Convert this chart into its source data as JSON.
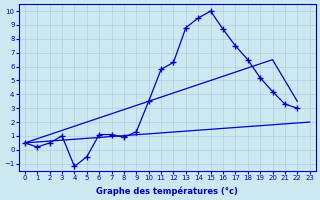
{
  "xlabel": "Graphe des températures (°c)",
  "background_color": "#cce8f0",
  "grid_color": "#aaccdd",
  "line_color": "#0000cc",
  "ylim": [
    -1.5,
    10.5
  ],
  "xlim": [
    -0.5,
    23.5
  ],
  "yticks": [
    -1,
    0,
    1,
    2,
    3,
    4,
    5,
    6,
    7,
    8,
    9,
    10
  ],
  "xticks": [
    0,
    1,
    2,
    3,
    4,
    5,
    6,
    7,
    8,
    9,
    10,
    11,
    12,
    13,
    14,
    15,
    16,
    17,
    18,
    19,
    20,
    21,
    22,
    23
  ],
  "temp_x": [
    0,
    1,
    2,
    3,
    4,
    5,
    6,
    7,
    8,
    9,
    10,
    11,
    12,
    13,
    14,
    15,
    16,
    17,
    18,
    19,
    20,
    21,
    22
  ],
  "temp_y": [
    0.5,
    0.2,
    0.5,
    1.0,
    -1.2,
    -0.5,
    1.1,
    1.1,
    0.9,
    1.3,
    3.5,
    5.8,
    6.3,
    8.8,
    9.5,
    10.0,
    8.7,
    7.5,
    6.5,
    5.2,
    4.2,
    3.3,
    3.0
  ],
  "line2_x": [
    0,
    20,
    22
  ],
  "line2_y": [
    0.5,
    6.5,
    3.5
  ],
  "line3_x": [
    0,
    23
  ],
  "line3_y": [
    0.5,
    2.0
  ]
}
